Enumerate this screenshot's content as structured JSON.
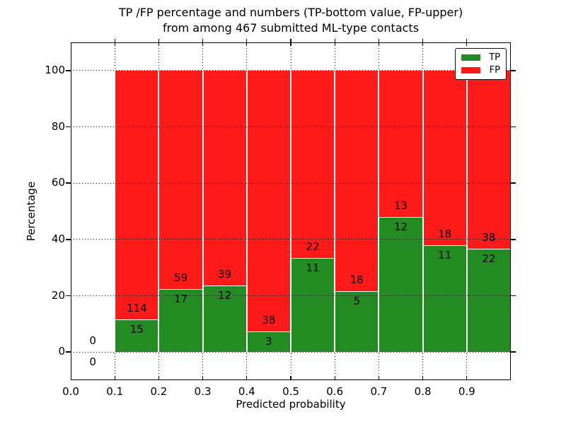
{
  "chart_data": {
    "type": "bar",
    "stacked": true,
    "title": "TP /FP percentage and numbers (TP-bottom value, FP-upper)",
    "subtitle": "from among 467 submitted ML-type contacts",
    "total_contacts": 467,
    "xlabel": "Predicted probability",
    "ylabel": "Percentage",
    "xlim": [
      0.0,
      1.0
    ],
    "ylim": [
      -10,
      110
    ],
    "grid": "dotted",
    "x_ticks": [
      {
        "value": 0.0,
        "label": "0.0"
      },
      {
        "value": 0.1,
        "label": "0.1"
      },
      {
        "value": 0.2,
        "label": "0.2"
      },
      {
        "value": 0.3,
        "label": "0.3"
      },
      {
        "value": 0.4,
        "label": "0.4"
      },
      {
        "value": 0.5,
        "label": "0.5"
      },
      {
        "value": 0.6,
        "label": "0.6"
      },
      {
        "value": 0.7,
        "label": "0.7"
      },
      {
        "value": 0.8,
        "label": "0.8"
      },
      {
        "value": 0.9,
        "label": "0.9"
      }
    ],
    "y_ticks": [
      {
        "value": 0,
        "label": "0"
      },
      {
        "value": 20,
        "label": "20"
      },
      {
        "value": 40,
        "label": "40"
      },
      {
        "value": 60,
        "label": "60"
      },
      {
        "value": 80,
        "label": "80"
      },
      {
        "value": 100,
        "label": "100"
      }
    ],
    "colors": {
      "tp": "#228B22",
      "fp": "#FF1A1A",
      "background": "#ffffff",
      "text": "#000000"
    },
    "legend": {
      "position": "upper-right",
      "entries": [
        {
          "key": "tp",
          "label": "TP",
          "color": "#228B22"
        },
        {
          "key": "fp",
          "label": "FP",
          "color": "#FF1A1A"
        }
      ]
    },
    "bins": [
      {
        "x_start": 0.0,
        "x_end": 0.1,
        "tp_count": 0,
        "fp_count": 0,
        "tp_pct": 0.0,
        "fp_pct": 0.0
      },
      {
        "x_start": 0.1,
        "x_end": 0.2,
        "tp_count": 15,
        "fp_count": 114,
        "tp_pct": 11.63,
        "fp_pct": 88.37
      },
      {
        "x_start": 0.2,
        "x_end": 0.3,
        "tp_count": 17,
        "fp_count": 59,
        "tp_pct": 22.37,
        "fp_pct": 77.63
      },
      {
        "x_start": 0.3,
        "x_end": 0.4,
        "tp_count": 12,
        "fp_count": 39,
        "tp_pct": 23.53,
        "fp_pct": 76.47
      },
      {
        "x_start": 0.4,
        "x_end": 0.5,
        "tp_count": 3,
        "fp_count": 38,
        "tp_pct": 7.32,
        "fp_pct": 92.68
      },
      {
        "x_start": 0.5,
        "x_end": 0.6,
        "tp_count": 11,
        "fp_count": 22,
        "tp_pct": 33.33,
        "fp_pct": 66.67
      },
      {
        "x_start": 0.6,
        "x_end": 0.7,
        "tp_count": 5,
        "fp_count": 18,
        "tp_pct": 21.74,
        "fp_pct": 78.26
      },
      {
        "x_start": 0.7,
        "x_end": 0.8,
        "tp_count": 12,
        "fp_count": 13,
        "tp_pct": 48.0,
        "fp_pct": 52.0
      },
      {
        "x_start": 0.8,
        "x_end": 0.9,
        "tp_count": 11,
        "fp_count": 18,
        "tp_pct": 37.93,
        "fp_pct": 62.07
      },
      {
        "x_start": 0.9,
        "x_end": 1.0,
        "tp_count": 22,
        "fp_count": 38,
        "tp_pct": 36.67,
        "fp_pct": 63.33
      }
    ]
  }
}
